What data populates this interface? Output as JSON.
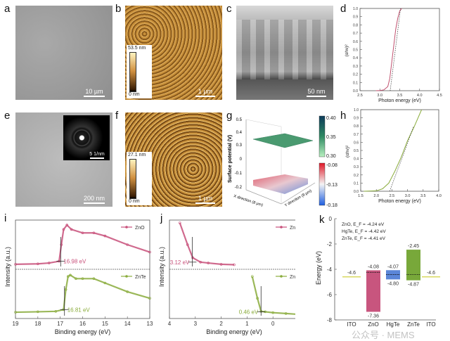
{
  "panels": {
    "a": {
      "label": "a",
      "scale": "10 µm"
    },
    "b": {
      "label": "b",
      "scale": "1 µm",
      "cbar_max": "53.5 nm",
      "cbar_min": "0 nm"
    },
    "c": {
      "label": "c",
      "scale": "50 nm"
    },
    "d": {
      "label": "d"
    },
    "e": {
      "label": "e",
      "scale": "200 nm",
      "inset_scale": "5 1/nm"
    },
    "f": {
      "label": "f",
      "scale": "1 µm",
      "cbar_max": "27.1 nm",
      "cbar_min": "0 nm"
    },
    "g": {
      "label": "g",
      "zlabel": "Surface potential (V)",
      "xlabel": "X direction (8 µm)",
      "ylabel": "Y direction (8 µm)",
      "zticks": [
        "0.5",
        "0.4",
        "0.3",
        "0",
        "-0.1",
        "-0.2"
      ],
      "cbar_top": [
        "0.40",
        "0.35",
        "0.30"
      ],
      "cbar_bottom": [
        "-0.08",
        "-0.13",
        "-0.18"
      ]
    },
    "h": {
      "label": "h"
    },
    "i": {
      "label": "i"
    },
    "j": {
      "label": "j"
    },
    "k": {
      "label": "k"
    }
  },
  "watermark": "公众号 · MEMS",
  "chart_data": [
    {
      "id": "d",
      "type": "line",
      "xlabel": "Photon energy (eV)",
      "ylabel": "(αhν)²",
      "xlim": [
        2.5,
        4.5
      ],
      "ylim": [
        0,
        1
      ],
      "xticks": [
        "2.5",
        "3.0",
        "3.5",
        "4.0",
        "4.5"
      ],
      "yticks": [
        "0.0",
        "0.1",
        "0.2",
        "0.3",
        "0.4",
        "0.5",
        "0.6",
        "0.7",
        "0.8",
        "0.9",
        "1.0"
      ],
      "color": "#c0506e",
      "series": [
        {
          "x": [
            2.9,
            3.0,
            3.1,
            3.2,
            3.25,
            3.3,
            3.35,
            3.4,
            3.45,
            3.5,
            3.55
          ],
          "y": [
            0,
            0.002,
            0.01,
            0.05,
            0.15,
            0.35,
            0.55,
            0.75,
            0.88,
            0.97,
            1.0
          ]
        }
      ],
      "fit": {
        "x": [
          3.26,
          3.52
        ],
        "y": [
          0,
          1
        ]
      }
    },
    {
      "id": "h",
      "type": "line",
      "xlabel": "Photon energy (eV)",
      "ylabel": "(αhν)²",
      "xlim": [
        1.5,
        4.0
      ],
      "ylim": [
        0,
        1
      ],
      "xticks": [
        "1.5",
        "2.0",
        "2.5",
        "3.0",
        "3.5",
        "4.0"
      ],
      "yticks": [
        "0.0",
        "0.1",
        "0.2",
        "0.3",
        "0.4",
        "0.5",
        "0.6",
        "0.7",
        "0.8",
        "0.9",
        "1.0"
      ],
      "color": "#8aac3c",
      "series": [
        {
          "x": [
            1.6,
            2.0,
            2.2,
            2.4,
            2.6,
            2.8,
            3.0,
            3.2,
            3.45
          ],
          "y": [
            0,
            0.005,
            0.03,
            0.1,
            0.25,
            0.42,
            0.62,
            0.78,
            1.0
          ]
        }
      ],
      "fit": {
        "x": [
          2.43,
          3.2
        ],
        "y": [
          0,
          0.8
        ]
      }
    },
    {
      "id": "i",
      "type": "line",
      "xlabel": "Binding energy (eV)",
      "ylabel": "Intensity (a.u.)",
      "xlim": [
        19,
        13
      ],
      "xticks": [
        "19",
        "18",
        "17",
        "16",
        "15",
        "14",
        "13"
      ],
      "series": [
        {
          "name": "ZnO",
          "color": "#c8507a",
          "annotation": "16.98 eV",
          "edge": 16.98,
          "x": [
            19,
            18,
            17.5,
            17.05,
            16.95,
            16.85,
            16.7,
            16.5,
            16,
            15.5,
            15,
            14,
            13
          ],
          "y": [
            0.05,
            0.06,
            0.08,
            0.12,
            0.5,
            0.85,
            0.95,
            0.85,
            0.77,
            0.77,
            0.7,
            0.5,
            0.33
          ]
        },
        {
          "name": "ZnTe",
          "color": "#8aac3c",
          "annotation": "16.81 eV",
          "edge": 16.81,
          "x": [
            19,
            18,
            17.2,
            16.85,
            16.75,
            16.65,
            16.55,
            16.3,
            16,
            15.5,
            15,
            14,
            13
          ],
          "y": [
            0.08,
            0.09,
            0.1,
            0.14,
            0.6,
            0.9,
            0.93,
            0.85,
            0.85,
            0.85,
            0.75,
            0.55,
            0.4
          ]
        }
      ]
    },
    {
      "id": "j",
      "type": "line",
      "xlabel": "Binding energy (eV)",
      "ylabel": "Intensity (a.u.)",
      "xlim": [
        4,
        -1
      ],
      "xticks": [
        "4",
        "3",
        "2",
        "1",
        "0",
        "-1"
      ],
      "series": [
        {
          "name": "ZnO",
          "color": "#c8507a",
          "annotation": "3.12 eV",
          "edge": 3.12,
          "x": [
            3.6,
            3.3,
            3.1,
            2.8,
            2.5,
            2,
            1.5
          ],
          "y": [
            1.0,
            0.5,
            0.2,
            0.1,
            0.08,
            0.05,
            0.04
          ]
        },
        {
          "name": "ZnTe",
          "color": "#8aac3c",
          "annotation": "0.46 eV",
          "edge": 0.46,
          "x": [
            0.8,
            0.6,
            0.46,
            0.3,
            0,
            -0.5,
            -1
          ],
          "y": [
            0.9,
            0.4,
            0.1,
            0.09,
            0.07,
            0.05,
            0.03
          ]
        }
      ]
    },
    {
      "id": "k",
      "type": "bar",
      "ylabel": "Energy (eV)",
      "ylim": [
        -8,
        0
      ],
      "yticks": [
        "0",
        "-2",
        "-4",
        "-6",
        "-8"
      ],
      "categories": [
        "ITO",
        "ZnO",
        "HgTe",
        "ZnTe",
        "ITO"
      ],
      "notes": [
        "ZnO, E_F = -4.24 eV",
        "HgTe, E_F = -4.42 eV",
        "ZnTe, E_F = -4.41 eV"
      ],
      "bars": [
        {
          "type": "line",
          "level": -4.6,
          "label": "-4.6",
          "color": "#d8d860"
        },
        {
          "top": -4.08,
          "bottom": -7.36,
          "fermi": -4.24,
          "top_label": "-4.08",
          "bottom_label": "-7.36",
          "color": "#c8557e"
        },
        {
          "top": -4.07,
          "bottom": -4.8,
          "fermi": -4.42,
          "top_label": "-4.07",
          "bottom_label": "-4.80",
          "color": "#5b86d8"
        },
        {
          "top": -2.45,
          "bottom": -4.87,
          "fermi": -4.41,
          "top_label": "-2.45",
          "bottom_label": "-4.87",
          "color": "#78a83a"
        },
        {
          "type": "line",
          "level": -4.6,
          "label": "-4.6",
          "color": "#d8d860"
        }
      ]
    }
  ]
}
